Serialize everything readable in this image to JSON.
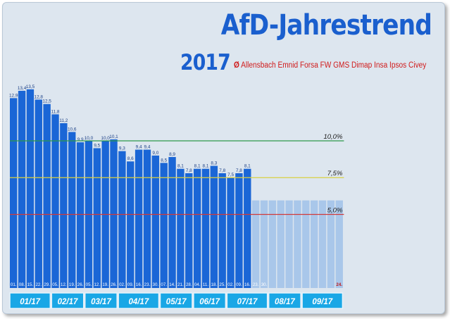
{
  "header": {
    "title": "AfD-Jahrestrend",
    "year": "2017",
    "average_symbol": "Ø",
    "institutes": "Allensbach Emnid Forsa FW GMS Dimap Insa Ipsos Civey"
  },
  "colors": {
    "bar": "#1a66d6",
    "bar_future": "#a9c7ea",
    "title": "#1a5fce",
    "subtitle": "#d01a1a",
    "line_10": "#2e9a4a",
    "line_7_5": "#d8d040",
    "line_5": "#d23a3a",
    "month_box": "#19a7e6",
    "background": "#dde6ef"
  },
  "chart_data": {
    "type": "bar",
    "ylim": [
      0,
      14.4
    ],
    "grid": false,
    "week_labels": [
      "01.",
      "08.",
      "15.",
      "22.",
      "29.",
      "05.",
      "12.",
      "19.",
      "26.",
      "05.",
      "12.",
      "19.",
      "26.",
      "02.",
      "09.",
      "16.",
      "23.",
      "30.",
      "07.",
      "14.",
      "21.",
      "28.",
      "04.",
      "11.",
      "18.",
      "25.",
      "02.",
      "09.",
      "16.",
      "23.",
      "30.",
      "",
      "",
      "",
      "",
      "",
      "",
      "",
      "",
      "24."
    ],
    "values": [
      12.9,
      13.4,
      13.5,
      12.8,
      12.5,
      11.8,
      11.2,
      10.6,
      9.9,
      10.0,
      9.5,
      10.0,
      10.1,
      9.3,
      8.6,
      9.4,
      9.4,
      9.0,
      8.5,
      8.9,
      8.1,
      7.8,
      8.1,
      8.1,
      8.3,
      7.8,
      7.5,
      7.8,
      8.1
    ],
    "value_labels": [
      "12,9",
      "13,4",
      "13,5",
      "12,8",
      "12,5",
      "11,8",
      "11,2",
      "10,6",
      "9,9",
      "10,0",
      "9,5",
      "10,0",
      "10,1",
      "9,3",
      "8,6",
      "9,4",
      "9,4",
      "9,0",
      "8,5",
      "8,9",
      "8,1",
      "7,8",
      "8,1",
      "8,1",
      "8,3",
      "7,8",
      "7,5",
      "7,8",
      "8,1"
    ],
    "future_weeks": 11,
    "reference_lines": [
      {
        "value": 10.0,
        "label": "10,0%"
      },
      {
        "value": 7.5,
        "label": "7,5%"
      },
      {
        "value": 5.0,
        "label": "5,0%"
      }
    ],
    "months": [
      {
        "label": "01/17",
        "weeks": 5
      },
      {
        "label": "02/17",
        "weeks": 4
      },
      {
        "label": "03/17",
        "weeks": 4
      },
      {
        "label": "04/17",
        "weeks": 5
      },
      {
        "label": "05/17",
        "weeks": 4
      },
      {
        "label": "06/17",
        "weeks": 4
      },
      {
        "label": "07/17",
        "weeks": 5
      },
      {
        "label": "08/17",
        "weeks": 4
      },
      {
        "label": "09/17",
        "weeks": 5
      }
    ]
  }
}
